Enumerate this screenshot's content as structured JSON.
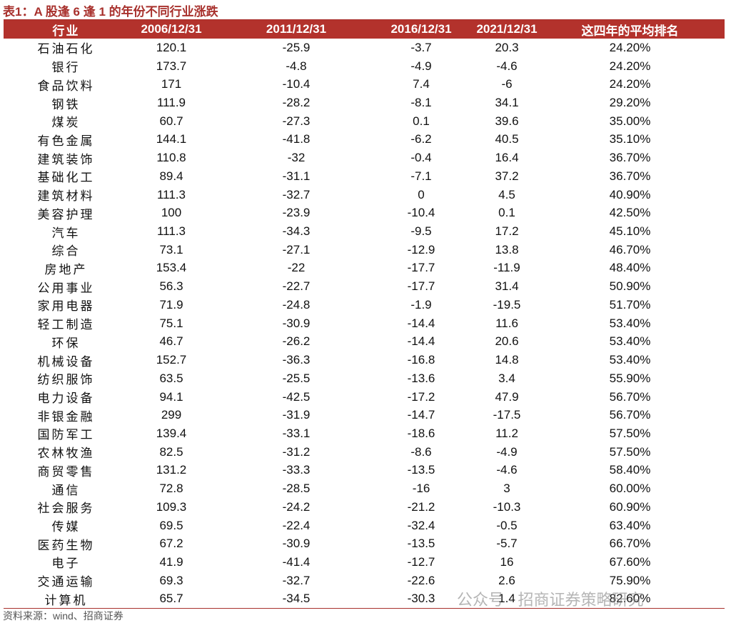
{
  "header": {
    "title": "表1：A 股逢 6 逢 1 的年份不同行业涨跌"
  },
  "table": {
    "columns": [
      "行业",
      "2006/12/31",
      "2011/12/31",
      "2016/12/31",
      "2021/12/31",
      "这四年的平均排名"
    ],
    "rows": [
      [
        "石油石化",
        "120.1",
        "-25.9",
        "-3.7",
        "20.3",
        "24.20%"
      ],
      [
        "银行",
        "173.7",
        "-4.8",
        "-4.9",
        "-4.6",
        "24.20%"
      ],
      [
        "食品饮料",
        "171",
        "-10.4",
        "7.4",
        "-6",
        "24.20%"
      ],
      [
        "钢铁",
        "111.9",
        "-28.2",
        "-8.1",
        "34.1",
        "29.20%"
      ],
      [
        "煤炭",
        "60.7",
        "-27.3",
        "0.1",
        "39.6",
        "35.00%"
      ],
      [
        "有色金属",
        "144.1",
        "-41.8",
        "-6.2",
        "40.5",
        "35.10%"
      ],
      [
        "建筑装饰",
        "110.8",
        "-32",
        "-0.4",
        "16.4",
        "36.70%"
      ],
      [
        "基础化工",
        "89.4",
        "-31.1",
        "-7.1",
        "37.2",
        "36.70%"
      ],
      [
        "建筑材料",
        "111.3",
        "-32.7",
        "0",
        "4.5",
        "40.90%"
      ],
      [
        "美容护理",
        "100",
        "-23.9",
        "-10.4",
        "0.1",
        "42.50%"
      ],
      [
        "汽车",
        "111.3",
        "-34.3",
        "-9.5",
        "17.2",
        "45.10%"
      ],
      [
        "综合",
        "73.1",
        "-27.1",
        "-12.9",
        "13.8",
        "46.70%"
      ],
      [
        "房地产",
        "153.4",
        "-22",
        "-17.7",
        "-11.9",
        "48.40%"
      ],
      [
        "公用事业",
        "56.3",
        "-22.7",
        "-17.7",
        "31.4",
        "50.90%"
      ],
      [
        "家用电器",
        "71.9",
        "-24.8",
        "-1.9",
        "-19.5",
        "51.70%"
      ],
      [
        "轻工制造",
        "75.1",
        "-30.9",
        "-14.4",
        "11.6",
        "53.40%"
      ],
      [
        "环保",
        "46.7",
        "-26.2",
        "-14.4",
        "20.6",
        "53.40%"
      ],
      [
        "机械设备",
        "152.7",
        "-36.3",
        "-16.8",
        "14.8",
        "53.40%"
      ],
      [
        "纺织服饰",
        "63.5",
        "-25.5",
        "-13.6",
        "3.4",
        "55.90%"
      ],
      [
        "电力设备",
        "94.1",
        "-42.5",
        "-17.2",
        "47.9",
        "56.70%"
      ],
      [
        "非银金融",
        "299",
        "-31.9",
        "-14.7",
        "-17.5",
        "56.70%"
      ],
      [
        "国防军工",
        "139.4",
        "-33.1",
        "-18.6",
        "11.2",
        "57.50%"
      ],
      [
        "农林牧渔",
        "82.5",
        "-31.2",
        "-8.6",
        "-4.9",
        "57.50%"
      ],
      [
        "商贸零售",
        "131.2",
        "-33.3",
        "-13.5",
        "-4.6",
        "58.40%"
      ],
      [
        "通信",
        "72.8",
        "-28.5",
        "-16",
        "3",
        "60.00%"
      ],
      [
        "社会服务",
        "109.3",
        "-24.2",
        "-21.2",
        "-10.3",
        "60.90%"
      ],
      [
        "传媒",
        "69.5",
        "-22.4",
        "-32.4",
        "-0.5",
        "63.40%"
      ],
      [
        "医药生物",
        "67.2",
        "-30.9",
        "-13.5",
        "-5.7",
        "66.70%"
      ],
      [
        "电子",
        "41.9",
        "-41.4",
        "-12.7",
        "16",
        "67.60%"
      ],
      [
        "交通运输",
        "69.3",
        "-32.7",
        "-22.6",
        "2.6",
        "75.90%"
      ],
      [
        "计算机",
        "65.7",
        "-34.5",
        "-30.3",
        "1.4",
        "82.60%"
      ]
    ]
  },
  "footer": {
    "source": "资料来源：wind、招商证券"
  },
  "watermark": "公众号 · 招商证券策略研究"
}
